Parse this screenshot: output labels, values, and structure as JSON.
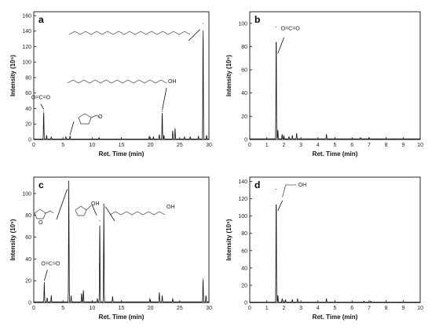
{
  "chart_data": [
    {
      "id": "a",
      "type": "line",
      "panel_label": "a",
      "xlabel": "Ret. Time (min)",
      "ylabel": "Intensity (10⁵)",
      "xlim": [
        0,
        30
      ],
      "ylim": [
        0,
        165
      ],
      "xticks": [
        0,
        5,
        10,
        15,
        20,
        25,
        30
      ],
      "yticks": [
        0,
        20,
        40,
        60,
        80,
        100,
        120,
        140,
        160
      ],
      "grid": false,
      "peaks": [
        [
          1.7,
          37
        ],
        [
          2.2,
          5
        ],
        [
          3.0,
          3
        ],
        [
          5.5,
          3
        ],
        [
          6.2,
          4
        ],
        [
          11.2,
          2
        ],
        [
          19.8,
          4
        ],
        [
          20.5,
          3
        ],
        [
          21.5,
          6
        ],
        [
          22.0,
          36
        ],
        [
          22.3,
          5
        ],
        [
          23.8,
          11
        ],
        [
          24.2,
          14
        ],
        [
          25.8,
          3
        ],
        [
          26.8,
          3
        ],
        [
          28.2,
          4
        ],
        [
          29.0,
          150
        ],
        [
          29.6,
          5
        ]
      ],
      "annotations": [
        {
          "label": "O=C=O",
          "peak_rt": 1.7
        },
        {
          "label": "O",
          "peak_rt": 6.2
        },
        {
          "label": "OH",
          "peak_rt": 22.0
        },
        {
          "label": "",
          "peak_rt": 29.0
        }
      ]
    },
    {
      "id": "b",
      "type": "line",
      "panel_label": "b",
      "xlabel": "Ret. Time (min)",
      "ylabel": "Intensity (10⁵)",
      "xlim": [
        0,
        10
      ],
      "ylim": [
        0,
        110
      ],
      "xticks": [
        0,
        1,
        2,
        3,
        4,
        5,
        6,
        7,
        8,
        9,
        10
      ],
      "yticks": [
        0,
        20,
        40,
        60,
        80,
        100
      ],
      "grid": false,
      "peaks": [
        [
          1.55,
          97
        ],
        [
          1.65,
          8
        ],
        [
          1.9,
          4
        ],
        [
          2.0,
          3
        ],
        [
          2.3,
          2
        ],
        [
          2.5,
          3
        ],
        [
          2.75,
          5
        ],
        [
          4.5,
          4
        ],
        [
          6.5,
          1
        ],
        [
          7.0,
          1
        ]
      ],
      "annotations": [
        {
          "label": "O=C=O",
          "peak_rt": 1.55
        }
      ]
    },
    {
      "id": "c",
      "type": "line",
      "panel_label": "c",
      "xlabel": "Ret. Time (min)",
      "ylabel": "Intensity (10⁵)",
      "xlim": [
        0,
        30
      ],
      "ylim": [
        0,
        115
      ],
      "xticks": [
        0,
        5,
        10,
        15,
        20,
        25,
        30
      ],
      "yticks": [
        0,
        20,
        40,
        60,
        80,
        100
      ],
      "grid": false,
      "peaks": [
        [
          1.8,
          18
        ],
        [
          2.3,
          4
        ],
        [
          3.0,
          6
        ],
        [
          6.0,
          111
        ],
        [
          6.4,
          6
        ],
        [
          8.2,
          8
        ],
        [
          8.5,
          11
        ],
        [
          10.9,
          3
        ],
        [
          11.3,
          75
        ],
        [
          12.0,
          90
        ],
        [
          13.5,
          5
        ],
        [
          19.9,
          3
        ],
        [
          21.5,
          9
        ],
        [
          22.0,
          6
        ],
        [
          23.8,
          3
        ],
        [
          29.0,
          22
        ],
        [
          29.5,
          6
        ]
      ],
      "annotations": [
        {
          "label": "O=C=O",
          "peak_rt": 1.8
        },
        {
          "label": "O",
          "peak_rt": 6.0
        },
        {
          "label": "OH",
          "peak_rt": 11.3
        },
        {
          "label": "OH",
          "peak_rt": 12.0
        }
      ]
    },
    {
      "id": "d",
      "type": "line",
      "panel_label": "d",
      "xlabel": "Ret. Time (min)",
      "ylabel": "Intensity (10⁵)",
      "xlim": [
        0,
        10
      ],
      "ylim": [
        0,
        145
      ],
      "xticks": [
        0,
        1,
        2,
        3,
        4,
        5,
        6,
        7,
        8,
        9,
        10
      ],
      "yticks": [
        0,
        20,
        40,
        60,
        80,
        100,
        120,
        140
      ],
      "grid": false,
      "peaks": [
        [
          1.55,
          131
        ],
        [
          1.65,
          8
        ],
        [
          1.9,
          4
        ],
        [
          2.1,
          3
        ],
        [
          2.5,
          3
        ],
        [
          2.8,
          4
        ],
        [
          4.5,
          4
        ],
        [
          6.7,
          1
        ],
        [
          7.1,
          1
        ]
      ],
      "annotations": [
        {
          "label": "OH",
          "peak_rt": 1.55
        }
      ]
    }
  ]
}
